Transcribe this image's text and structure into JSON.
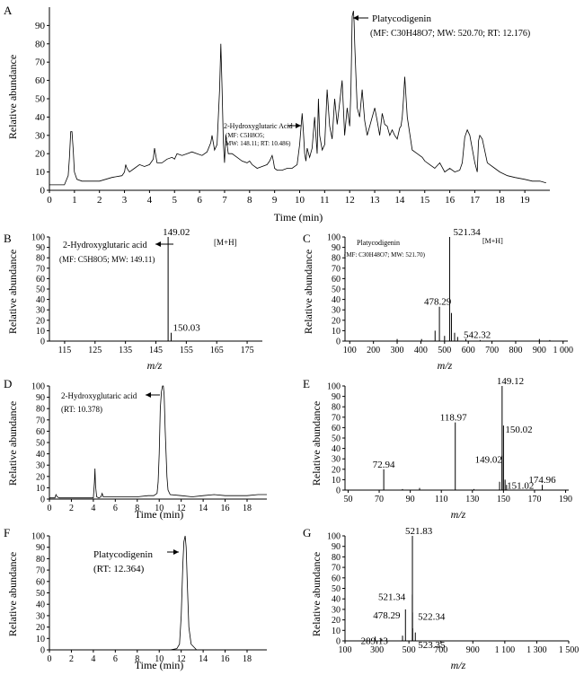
{
  "panels": {
    "A": {
      "letter": "A",
      "xlabel": "Time (min)",
      "ylabel": "Relative abundance",
      "ann1_name": "Platycodigenin",
      "ann1_detail": "(MF: C30H48O7; MW: 520.70; RT: 12.176)",
      "ann2_name": "2-Hydroxyglutaric Acid",
      "ann2_mf": "(MF: C5H8O5;",
      "ann2_mw": "MW: 148.11; RT: 10.486)"
    },
    "B": {
      "letter": "B",
      "xlabel": "m/z",
      "ylabel": "Relative abundance",
      "ann_name": "2-Hydroxyglutaric acid",
      "ann_detail": "(MF: C5H8O5; MW: 149.11)",
      "ion": "[M+H]"
    },
    "C": {
      "letter": "C",
      "xlabel": "m/z",
      "ylabel": "Relative abundance",
      "ann_name": "Platycodigenin",
      "ann_detail": "(MF: C30H48O7; MW: 521.70)",
      "ion": "[M+H]"
    },
    "D": {
      "letter": "D",
      "xlabel": "Time (min)",
      "ylabel": "Relative abundance",
      "ann_name": "2-Hydroxyglutaric acid",
      "ann_detail": "(RT: 10.378)"
    },
    "E": {
      "letter": "E",
      "xlabel": "m/z",
      "ylabel": "Relative abundance"
    },
    "F": {
      "letter": "F",
      "xlabel": "Time (min)",
      "ylabel": "Relative abundance",
      "ann_name": "Platycodigenin",
      "ann_detail": "(RT: 12.364)"
    },
    "G": {
      "letter": "G",
      "xlabel": "m/z",
      "ylabel": "Relative abundance"
    }
  },
  "chart_data": [
    {
      "panel": "A",
      "type": "line",
      "xlabel": "Time (min)",
      "ylabel": "Relative abundance",
      "xlim": [
        0,
        20
      ],
      "ylim": [
        0,
        100
      ],
      "xticks": [
        0,
        1,
        2,
        3,
        4,
        5,
        6,
        7,
        8,
        9,
        10,
        11,
        12,
        13,
        14,
        15,
        16,
        17,
        18,
        19
      ],
      "yticks": [
        0,
        10,
        20,
        30,
        40,
        50,
        60,
        70,
        80,
        90
      ],
      "x": [
        0,
        0.6,
        0.75,
        0.8,
        0.85,
        0.9,
        0.95,
        1.0,
        1.1,
        1.3,
        1.6,
        2.0,
        2.5,
        2.9,
        3.0,
        3.05,
        3.1,
        3.2,
        3.4,
        3.6,
        3.8,
        4.0,
        4.15,
        4.2,
        4.3,
        4.5,
        4.7,
        4.9,
        5.0,
        5.1,
        5.3,
        5.5,
        5.7,
        5.9,
        6.1,
        6.3,
        6.45,
        6.5,
        6.6,
        6.7,
        6.8,
        6.85,
        6.9,
        6.95,
        7.0,
        7.05,
        7.15,
        7.3,
        7.5,
        7.7,
        7.9,
        8.0,
        8.1,
        8.3,
        8.5,
        8.7,
        8.8,
        8.9,
        8.95,
        9.0,
        9.1,
        9.3,
        9.5,
        9.7,
        9.9,
        10.0,
        10.1,
        10.15,
        10.2,
        10.25,
        10.3,
        10.4,
        10.5,
        10.6,
        10.7,
        10.75,
        10.8,
        10.9,
        11.0,
        11.1,
        11.2,
        11.3,
        11.4,
        11.5,
        11.6,
        11.7,
        11.8,
        11.9,
        12.0,
        12.05,
        12.1,
        12.15,
        12.176,
        12.2,
        12.25,
        12.3,
        12.4,
        12.5,
        12.6,
        12.7,
        12.8,
        12.9,
        13.0,
        13.1,
        13.2,
        13.3,
        13.4,
        13.5,
        13.6,
        13.7,
        13.8,
        13.9,
        14.0,
        14.05,
        14.1,
        14.15,
        14.2,
        14.3,
        14.5,
        14.7,
        14.9,
        15.0,
        15.2,
        15.4,
        15.6,
        15.8,
        16.0,
        16.2,
        16.4,
        16.5,
        16.6,
        16.7,
        16.8,
        17.0,
        17.1,
        17.15,
        17.2,
        17.3,
        17.5,
        17.8,
        18.0,
        18.3,
        18.6,
        19.0,
        19.3,
        19.6,
        19.85
      ],
      "y": [
        3,
        3,
        8,
        18,
        32,
        32,
        22,
        10,
        6,
        5,
        5,
        5,
        7,
        8,
        10,
        14,
        12,
        10,
        12,
        14,
        13,
        14,
        17,
        23,
        15,
        15,
        17,
        18,
        17,
        20,
        19,
        20,
        21,
        20,
        19,
        21,
        26,
        30,
        22,
        25,
        55,
        80,
        55,
        26,
        15,
        30,
        20,
        20,
        18,
        16,
        15,
        16,
        14,
        12,
        13,
        14,
        16,
        19,
        16,
        12,
        11,
        11,
        12,
        12,
        14,
        25,
        42,
        32,
        20,
        16,
        23,
        18,
        23,
        40,
        20,
        50,
        30,
        22,
        25,
        55,
        35,
        28,
        50,
        36,
        48,
        60,
        30,
        45,
        35,
        55,
        95,
        98,
        92,
        80,
        62,
        45,
        40,
        55,
        38,
        30,
        35,
        40,
        45,
        38,
        30,
        42,
        36,
        35,
        30,
        33,
        30,
        28,
        34,
        35,
        40,
        50,
        62,
        40,
        22,
        20,
        18,
        16,
        14,
        12,
        15,
        10,
        12,
        10,
        11,
        15,
        29,
        33,
        30,
        15,
        10,
        27,
        30,
        28,
        15,
        12,
        10,
        8,
        7,
        6,
        5,
        5,
        4
      ],
      "annotations": [
        "Platycodigenin",
        "(MF: C30H48O7; MW: 520.70; RT: 12.176)",
        "2-Hydroxyglutaric Acid",
        "(MF: C5H8O5;",
        "MW: 148.11; RT: 10.486)"
      ]
    },
    {
      "panel": "B",
      "type": "bar",
      "xlabel": "m/z",
      "ylabel": "Relative abundance",
      "xlim": [
        110,
        180
      ],
      "ylim": [
        0,
        100
      ],
      "xticks": [
        115,
        125,
        135,
        145,
        155,
        165,
        175
      ],
      "yticks": [
        0,
        10,
        20,
        30,
        40,
        50,
        60,
        70,
        80,
        90,
        100
      ],
      "peaks": [
        {
          "mz": 149.02,
          "intensity": 100,
          "label": "149.02"
        },
        {
          "mz": 150.03,
          "intensity": 8,
          "label": "150.03"
        }
      ],
      "annotations": [
        "2-Hydroxyglutaric acid",
        "(MF: C5H8O5; MW: 149.11)",
        "[M+H]"
      ]
    },
    {
      "panel": "C",
      "type": "bar",
      "xlabel": "m/z",
      "ylabel": "Relative abundance",
      "xlim": [
        80,
        1020
      ],
      "ylim": [
        0,
        100
      ],
      "xticks": [
        100,
        200,
        300,
        400,
        500,
        600,
        700,
        800,
        900,
        1000
      ],
      "xticklabels": [
        "100",
        "200",
        "300",
        "400",
        "500",
        "600",
        "700",
        "800",
        "900",
        "1 000"
      ],
      "yticks": [
        0,
        10,
        20,
        30,
        40,
        50,
        60,
        70,
        80,
        90,
        100
      ],
      "peaks": [
        {
          "mz": 521.34,
          "intensity": 100,
          "label": "521.34"
        },
        {
          "mz": 478.29,
          "intensity": 33,
          "label": "478.29"
        },
        {
          "mz": 542.32,
          "intensity": 8,
          "label": "542.32"
        },
        {
          "mz": 529,
          "intensity": 27,
          "label": ""
        },
        {
          "mz": 460,
          "intensity": 10,
          "label": ""
        },
        {
          "mz": 500,
          "intensity": 5,
          "label": ""
        },
        {
          "mz": 555,
          "intensity": 4,
          "label": ""
        },
        {
          "mz": 300,
          "intensity": 2,
          "label": ""
        },
        {
          "mz": 403,
          "intensity": 2,
          "label": ""
        },
        {
          "mz": 590,
          "intensity": 2,
          "label": ""
        },
        {
          "mz": 650,
          "intensity": 1,
          "label": ""
        },
        {
          "mz": 900,
          "intensity": 2,
          "label": ""
        },
        {
          "mz": 944,
          "intensity": 1,
          "label": ""
        }
      ],
      "annotations": [
        "Platycodigenin",
        "(MF: C30H48O7; MW: 521.70)",
        "[M+H]"
      ]
    },
    {
      "panel": "D",
      "type": "line",
      "xlabel": "Time (min)",
      "ylabel": "Relative abundance",
      "xlim": [
        0,
        19.8
      ],
      "ylim": [
        0,
        100
      ],
      "xticks": [
        0,
        2,
        4,
        6,
        8,
        10,
        12,
        14,
        16,
        18
      ],
      "yticks": [
        0,
        10,
        20,
        30,
        40,
        50,
        60,
        70,
        80,
        90,
        100
      ],
      "x": [
        0,
        0.5,
        0.6,
        0.7,
        0.9,
        1.5,
        2.5,
        3.5,
        4.0,
        4.1,
        4.15,
        4.2,
        4.3,
        4.5,
        4.7,
        4.8,
        4.9,
        5.2,
        6.0,
        7.0,
        8.0,
        9.0,
        9.5,
        9.8,
        9.9,
        10.0,
        10.1,
        10.2,
        10.3,
        10.378,
        10.45,
        10.55,
        10.7,
        10.8,
        11.0,
        12.0,
        13.0,
        14.0,
        15.0,
        16.0,
        17.0,
        18.0,
        19.0,
        19.8
      ],
      "y": [
        1,
        1,
        4,
        2,
        1,
        1,
        1,
        1,
        1,
        15,
        27,
        12,
        2,
        1,
        2,
        5,
        2,
        2,
        2,
        2,
        2,
        3,
        3,
        5,
        15,
        40,
        80,
        95,
        100,
        100,
        92,
        60,
        20,
        8,
        4,
        3,
        2,
        3,
        4,
        3,
        3,
        3,
        4,
        4
      ],
      "annotations": [
        "2-Hydroxyglutaric acid",
        "(RT: 10.378)"
      ]
    },
    {
      "panel": "E",
      "type": "bar",
      "xlabel": "m/z",
      "ylabel": "Relative abundance",
      "xlim": [
        48,
        192
      ],
      "ylim": [
        0,
        100
      ],
      "xticks": [
        50,
        70,
        90,
        110,
        130,
        150,
        170,
        190
      ],
      "yticks": [
        0,
        10,
        20,
        30,
        40,
        50,
        60,
        70,
        80,
        90,
        100
      ],
      "peaks": [
        {
          "mz": 149.12,
          "intensity": 100,
          "label": "149.12"
        },
        {
          "mz": 150.02,
          "intensity": 62,
          "label": "150.02"
        },
        {
          "mz": 118.97,
          "intensity": 65,
          "label": "118.97"
        },
        {
          "mz": 149.02,
          "intensity": 33,
          "label": "149.02"
        },
        {
          "mz": 72.94,
          "intensity": 20,
          "label": "72.94"
        },
        {
          "mz": 151.02,
          "intensity": 10,
          "label": "151.02"
        },
        {
          "mz": 174.96,
          "intensity": 5,
          "label": "174.96"
        },
        {
          "mz": 147.5,
          "intensity": 8,
          "label": ""
        },
        {
          "mz": 152.0,
          "intensity": 5,
          "label": ""
        },
        {
          "mz": 96,
          "intensity": 2,
          "label": ""
        },
        {
          "mz": 85,
          "intensity": 1,
          "label": ""
        },
        {
          "mz": 131,
          "intensity": 1,
          "label": ""
        }
      ]
    },
    {
      "panel": "F",
      "type": "line",
      "xlabel": "Time (min)",
      "ylabel": "Relative abundance",
      "xlim": [
        0,
        19.8
      ],
      "ylim": [
        0,
        100
      ],
      "xticks": [
        0,
        2,
        4,
        6,
        8,
        10,
        12,
        14,
        16,
        18
      ],
      "yticks": [
        0,
        10,
        20,
        30,
        40,
        50,
        60,
        70,
        80,
        90,
        100
      ],
      "x": [
        0,
        11.0,
        11.6,
        11.85,
        12.0,
        12.15,
        12.25,
        12.364,
        12.45,
        12.55,
        12.7,
        12.9,
        13.4,
        19.8
      ],
      "y": [
        0,
        0,
        1,
        5,
        30,
        75,
        95,
        100,
        90,
        60,
        20,
        5,
        0,
        0
      ],
      "annotations": [
        "Platycodigenin",
        "(RT: 12.364)"
      ]
    },
    {
      "panel": "G",
      "type": "bar",
      "xlabel": "m/z",
      "ylabel": "Relative abundance",
      "xlim": [
        100,
        1500
      ],
      "ylim": [
        0,
        100
      ],
      "xticks": [
        100,
        300,
        500,
        700,
        900,
        1100,
        1300,
        1500
      ],
      "xticklabels": [
        "100",
        "300",
        "500",
        "700",
        "900",
        "1 100",
        "1 300",
        "1 500"
      ],
      "yticks": [
        0,
        10,
        20,
        30,
        40,
        50,
        60,
        70,
        80,
        90,
        100
      ],
      "peaks": [
        {
          "mz": 521.83,
          "intensity": 100,
          "label": "521.83"
        },
        {
          "mz": 521.34,
          "intensity": 44,
          "label": "521.34"
        },
        {
          "mz": 478.29,
          "intensity": 30,
          "label": "478.29"
        },
        {
          "mz": 522.34,
          "intensity": 27,
          "label": "522.34"
        },
        {
          "mz": 523.35,
          "intensity": 12,
          "label": "523.35"
        },
        {
          "mz": 289.13,
          "intensity": 4,
          "label": "289.13"
        },
        {
          "mz": 540,
          "intensity": 8,
          "label": ""
        },
        {
          "mz": 330,
          "intensity": 2,
          "label": ""
        },
        {
          "mz": 460,
          "intensity": 5,
          "label": ""
        }
      ]
    }
  ]
}
